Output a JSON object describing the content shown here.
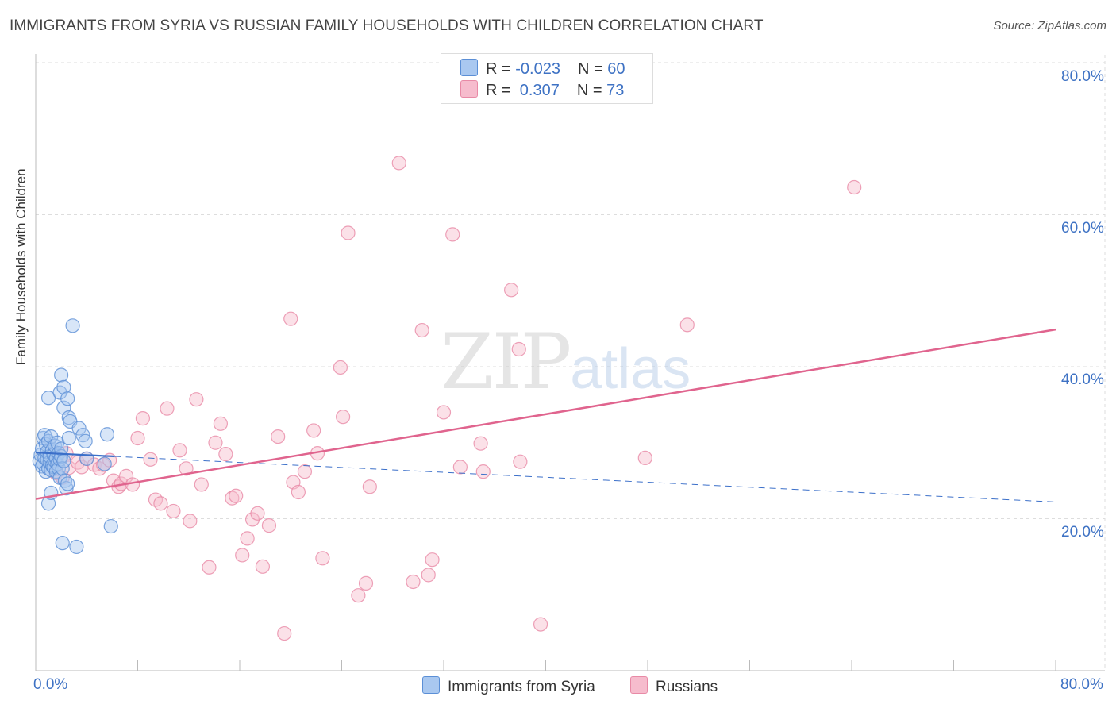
{
  "header": {
    "title": "IMMIGRANTS FROM SYRIA VS RUSSIAN FAMILY HOUSEHOLDS WITH CHILDREN CORRELATION CHART",
    "source": "Source: ZipAtlas.com"
  },
  "watermark": {
    "zip": "ZIP",
    "atlas": "atlas"
  },
  "legend": {
    "row1": {
      "r_label": "R = ",
      "r_value": "-0.023",
      "n_label": "N = ",
      "n_value": "60"
    },
    "row2": {
      "r_label": "R = ",
      "r_value": " 0.307",
      "n_label": "N = ",
      "n_value": "73"
    }
  },
  "colors": {
    "series1_fill": "#a9c8f0",
    "series1_stroke": "#5b8fd6",
    "series1_line": "#3b6fc9",
    "series2_fill": "#f6bccd",
    "series2_stroke": "#e88aa6",
    "series2_line": "#e0648e",
    "axis_text": "#3e72c4",
    "grid": "#dddddd"
  },
  "chart_data": {
    "type": "scatter",
    "title": "IMMIGRANTS FROM SYRIA VS RUSSIAN FAMILY HOUSEHOLDS WITH CHILDREN CORRELATION CHART",
    "xlabel": "",
    "ylabel": "Family Households with Children",
    "xlim": [
      0,
      80
    ],
    "ylim": [
      0,
      80
    ],
    "x_tick_labels": [
      "0.0%",
      "80.0%"
    ],
    "y_tick_labels": [
      "20.0%",
      "40.0%",
      "60.0%",
      "80.0%"
    ],
    "y_ticks": [
      20,
      40,
      60,
      80
    ],
    "x_ticks": [
      0,
      8,
      16,
      24,
      32,
      40,
      48,
      56,
      64,
      72,
      80
    ],
    "series": [
      {
        "name": "Immigrants from Syria",
        "R": -0.023,
        "N": 60,
        "trend": {
          "x": [
            0,
            80
          ],
          "y": [
            28.7,
            22.2
          ],
          "solid_until": 6.2
        },
        "points": [
          [
            0.3,
            27.6
          ],
          [
            0.4,
            28.4
          ],
          [
            0.5,
            29.2
          ],
          [
            0.5,
            26.9
          ],
          [
            0.6,
            30.6
          ],
          [
            0.6,
            27.2
          ],
          [
            0.7,
            31.0
          ],
          [
            0.7,
            28.0
          ],
          [
            0.8,
            26.2
          ],
          [
            0.8,
            29.8
          ],
          [
            0.9,
            27.8
          ],
          [
            0.9,
            28.8
          ],
          [
            1.0,
            26.6
          ],
          [
            1.0,
            30.2
          ],
          [
            1.1,
            27.4
          ],
          [
            1.1,
            28.2
          ],
          [
            1.2,
            30.8
          ],
          [
            1.2,
            26.4
          ],
          [
            1.3,
            27.0
          ],
          [
            1.3,
            29.0
          ],
          [
            1.4,
            28.4
          ],
          [
            1.4,
            26.8
          ],
          [
            1.5,
            27.6
          ],
          [
            1.5,
            29.6
          ],
          [
            1.6,
            26.2
          ],
          [
            1.6,
            28.0
          ],
          [
            1.7,
            27.2
          ],
          [
            1.7,
            30.0
          ],
          [
            1.8,
            28.6
          ],
          [
            1.8,
            26.6
          ],
          [
            1.9,
            27.8
          ],
          [
            1.9,
            25.4
          ],
          [
            2.0,
            28.2
          ],
          [
            2.0,
            29.2
          ],
          [
            2.1,
            26.6
          ],
          [
            2.2,
            27.6
          ],
          [
            2.3,
            25.0
          ],
          [
            2.4,
            24.0
          ],
          [
            2.5,
            24.6
          ],
          [
            2.2,
            34.6
          ],
          [
            1.0,
            35.9
          ],
          [
            1.9,
            36.6
          ],
          [
            2.0,
            38.9
          ],
          [
            2.2,
            37.3
          ],
          [
            2.5,
            35.8
          ],
          [
            2.6,
            33.3
          ],
          [
            2.6,
            30.6
          ],
          [
            2.7,
            32.8
          ],
          [
            3.4,
            31.9
          ],
          [
            3.7,
            31.0
          ],
          [
            3.9,
            30.2
          ],
          [
            5.6,
            31.1
          ],
          [
            5.4,
            27.2
          ],
          [
            4.0,
            27.9
          ],
          [
            2.9,
            45.4
          ],
          [
            1.0,
            22.0
          ],
          [
            1.2,
            23.4
          ],
          [
            2.1,
            16.8
          ],
          [
            3.2,
            16.3
          ],
          [
            5.9,
            19.0
          ]
        ]
      },
      {
        "name": "Russians",
        "R": 0.307,
        "N": 73,
        "trend": {
          "x": [
            0,
            80
          ],
          "y": [
            22.6,
            44.9
          ]
        },
        "points": [
          [
            1.1,
            27.3
          ],
          [
            1.6,
            26.0
          ],
          [
            2.1,
            25.4
          ],
          [
            2.4,
            28.6
          ],
          [
            2.6,
            26.7
          ],
          [
            3.3,
            27.4
          ],
          [
            3.6,
            26.8
          ],
          [
            4.0,
            27.9
          ],
          [
            4.6,
            27.1
          ],
          [
            5.0,
            26.6
          ],
          [
            5.3,
            27.1
          ],
          [
            5.8,
            27.7
          ],
          [
            6.1,
            25.0
          ],
          [
            6.5,
            24.2
          ],
          [
            6.7,
            24.6
          ],
          [
            7.1,
            25.6
          ],
          [
            7.6,
            24.5
          ],
          [
            8.0,
            30.6
          ],
          [
            8.4,
            33.2
          ],
          [
            9.0,
            27.8
          ],
          [
            9.4,
            22.5
          ],
          [
            9.8,
            22.0
          ],
          [
            10.3,
            34.5
          ],
          [
            10.8,
            21.0
          ],
          [
            11.3,
            29.0
          ],
          [
            11.8,
            26.6
          ],
          [
            12.1,
            19.7
          ],
          [
            12.6,
            35.7
          ],
          [
            13.0,
            24.5
          ],
          [
            13.6,
            13.6
          ],
          [
            14.1,
            30.0
          ],
          [
            14.5,
            32.5
          ],
          [
            14.9,
            28.5
          ],
          [
            15.4,
            22.7
          ],
          [
            15.7,
            23.0
          ],
          [
            16.2,
            15.2
          ],
          [
            16.6,
            17.4
          ],
          [
            17.0,
            19.9
          ],
          [
            17.4,
            20.7
          ],
          [
            17.8,
            13.7
          ],
          [
            18.3,
            19.1
          ],
          [
            19.0,
            30.8
          ],
          [
            19.5,
            4.9
          ],
          [
            20.0,
            46.3
          ],
          [
            20.2,
            24.8
          ],
          [
            20.6,
            23.5
          ],
          [
            21.1,
            26.2
          ],
          [
            21.8,
            31.6
          ],
          [
            22.1,
            28.6
          ],
          [
            22.5,
            14.8
          ],
          [
            23.9,
            39.9
          ],
          [
            24.1,
            33.4
          ],
          [
            24.5,
            57.6
          ],
          [
            25.3,
            9.9
          ],
          [
            25.9,
            11.5
          ],
          [
            26.2,
            24.2
          ],
          [
            28.5,
            66.8
          ],
          [
            29.6,
            11.7
          ],
          [
            30.3,
            44.8
          ],
          [
            30.8,
            12.6
          ],
          [
            31.1,
            14.6
          ],
          [
            32.0,
            34.0
          ],
          [
            32.7,
            57.4
          ],
          [
            33.3,
            26.8
          ],
          [
            34.9,
            29.9
          ],
          [
            35.1,
            26.2
          ],
          [
            37.3,
            50.1
          ],
          [
            37.9,
            42.3
          ],
          [
            38.0,
            27.5
          ],
          [
            39.6,
            6.1
          ],
          [
            47.8,
            28.0
          ],
          [
            51.1,
            45.5
          ],
          [
            64.2,
            63.6
          ]
        ]
      }
    ]
  },
  "bottom_legend": {
    "series1_label": "Immigrants from Syria",
    "series2_label": "Russians"
  }
}
